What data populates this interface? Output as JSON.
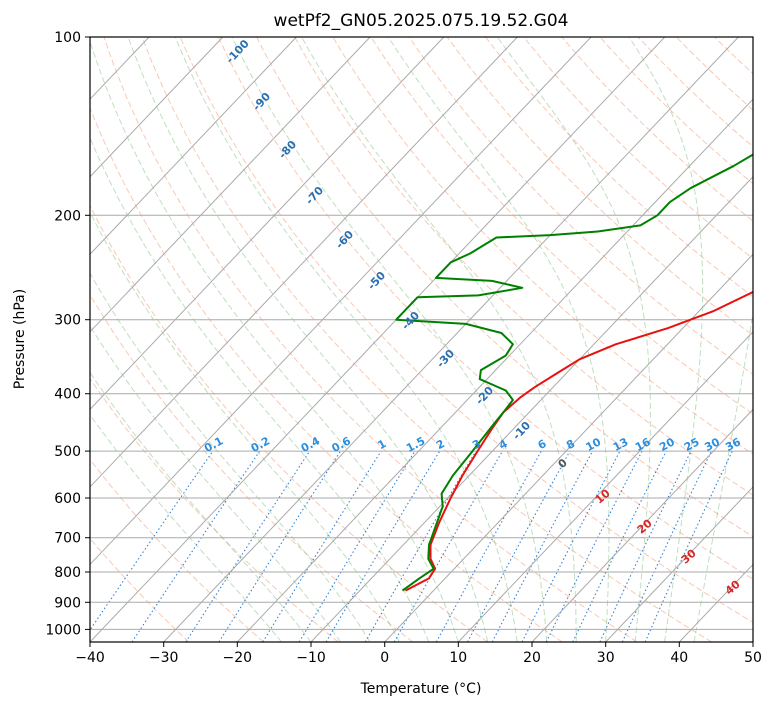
{
  "chart_data": {
    "type": "line",
    "title": "wetPf2_GN05.2025.075.19.52.G04",
    "xlabel": "Temperature (°C)",
    "ylabel": "Pressure (hPa)",
    "xlim": [
      -40,
      50
    ],
    "ylim": [
      1050,
      100
    ],
    "y_scale": "log",
    "x_ticks": [
      -40,
      -30,
      -20,
      -10,
      0,
      10,
      20,
      30,
      40,
      50
    ],
    "y_ticks": [
      100,
      200,
      300,
      400,
      500,
      600,
      700,
      800,
      900,
      1000
    ],
    "grid": true,
    "series": [
      {
        "name": "",
        "color": "#e8110f",
        "points": [
          [
            -3.8,
            860
          ],
          [
            -2.2,
            820
          ],
          [
            -2.6,
            790
          ],
          [
            -4.5,
            760
          ],
          [
            -6.3,
            720
          ],
          [
            -8.0,
            660
          ],
          [
            -9.6,
            600
          ],
          [
            -10.9,
            550
          ],
          [
            -12.0,
            500
          ],
          [
            -12.9,
            460
          ],
          [
            -13.5,
            430
          ],
          [
            -13.1,
            405
          ],
          [
            -12.5,
            390
          ],
          [
            -11.3,
            370
          ],
          [
            -10.0,
            350
          ],
          [
            -7.0,
            330
          ],
          [
            -2.0,
            310
          ],
          [
            2.0,
            290
          ],
          [
            5.5,
            265
          ],
          [
            8.5,
            240
          ],
          [
            10.5,
            225
          ],
          [
            11.5,
            215
          ],
          [
            12.5,
            200
          ],
          [
            15.0,
            188
          ],
          [
            18.0,
            178
          ],
          [
            21.0,
            165
          ],
          [
            22.5,
            155
          ],
          [
            24.5,
            140
          ],
          [
            26.5,
            130
          ],
          [
            28.5,
            122
          ],
          [
            30.5,
            112
          ],
          [
            32.0,
            100
          ]
        ]
      },
      {
        "name": "",
        "color": "#008000",
        "points": [
          [
            -4.2,
            860
          ],
          [
            -3.5,
            820
          ],
          [
            -2.8,
            790
          ],
          [
            -4.8,
            760
          ],
          [
            -6.5,
            720
          ],
          [
            -8.3,
            660
          ],
          [
            -9.6,
            620
          ],
          [
            -11.4,
            590
          ],
          [
            -12.2,
            550
          ],
          [
            -12.7,
            500
          ],
          [
            -13.3,
            450
          ],
          [
            -13.5,
            430
          ],
          [
            -13.8,
            410
          ],
          [
            -16.0,
            395
          ],
          [
            -21.0,
            378
          ],
          [
            -22.0,
            365
          ],
          [
            -20.5,
            345
          ],
          [
            -21.0,
            330
          ],
          [
            -24.0,
            316
          ],
          [
            -30.0,
            305
          ],
          [
            -40.0,
            300
          ],
          [
            -40.0,
            275
          ],
          [
            -32.0,
            273
          ],
          [
            -27.0,
            265
          ],
          [
            -32.0,
            258
          ],
          [
            -40.0,
            255
          ],
          [
            -40.0,
            240
          ],
          [
            -38.5,
            232
          ],
          [
            -37.0,
            218
          ],
          [
            -30.0,
            216
          ],
          [
            -24.0,
            213
          ],
          [
            -19.0,
            208
          ],
          [
            -18.0,
            200
          ],
          [
            -18.0,
            190
          ],
          [
            -17.0,
            180
          ],
          [
            -14.0,
            165
          ],
          [
            -11.5,
            150
          ],
          [
            -8.0,
            130
          ],
          [
            -5.0,
            115
          ],
          [
            -2.5,
            100
          ]
        ]
      }
    ],
    "isotherm_labels": [
      {
        "t": -100,
        "text": "-100"
      },
      {
        "t": -90,
        "text": "-90"
      },
      {
        "t": -80,
        "text": "-80"
      },
      {
        "t": -70,
        "text": "-70"
      },
      {
        "t": -60,
        "text": "-60"
      },
      {
        "t": -50,
        "text": "-50"
      },
      {
        "t": -40,
        "text": "-40"
      },
      {
        "t": -30,
        "text": "-30"
      },
      {
        "t": -20,
        "text": "-20"
      },
      {
        "t": -10,
        "text": "-10"
      }
    ],
    "mixing_ratio_labels": [
      "0.1",
      "0.2",
      "0.4",
      "0.6",
      "1",
      "1.5",
      "2",
      "3",
      "4",
      "6",
      "8",
      "10",
      "13",
      "16",
      "20",
      "25",
      "30",
      "36"
    ],
    "moist_adiabat_labels": [
      "0",
      "10",
      "20",
      "30",
      "40"
    ]
  }
}
